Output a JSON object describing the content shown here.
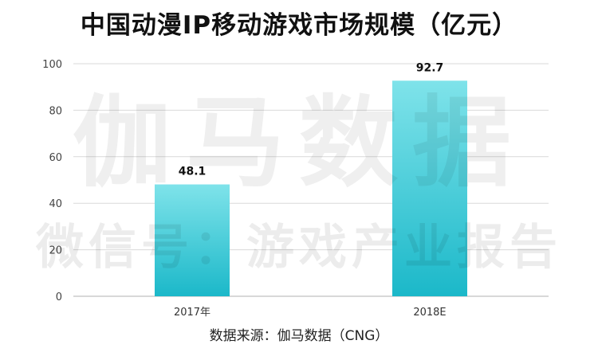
{
  "chart_data": {
    "type": "bar",
    "title": "中国动漫IP移动游戏市场规模（亿元）",
    "categories": [
      "2017年",
      "2018E"
    ],
    "values": [
      48.1,
      92.7
    ],
    "data_labels": [
      "48.1",
      "92.7"
    ],
    "ylim": [
      0,
      100
    ],
    "yticks": [
      0,
      20,
      40,
      60,
      80,
      100
    ],
    "grid": true,
    "bar_color": "#1BB8C9",
    "bar_color_light": "#7FE3EA",
    "source": "数据来源：伽马数据（CNG）"
  },
  "watermark": {
    "line1": "伽马数据",
    "line2": "微信号：游戏产业报告"
  }
}
